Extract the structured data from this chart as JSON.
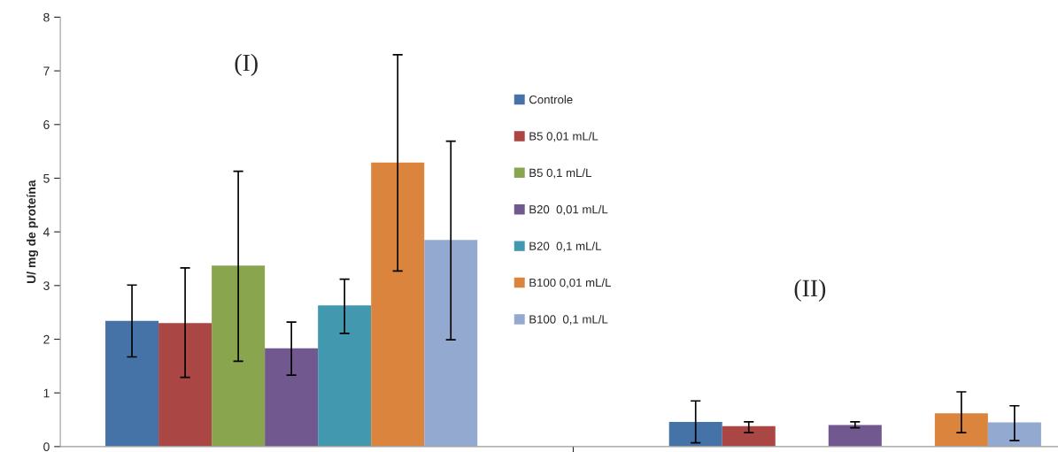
{
  "chart_data": {
    "type": "bar",
    "ylabel": "U/ mg de proteína",
    "categories": [
      null,
      null
    ],
    "ylim": [
      0,
      8
    ],
    "yticks": [
      0,
      1,
      2,
      3,
      4,
      5,
      6,
      7,
      8
    ],
    "grid": false,
    "legend": "center",
    "annotations": [
      "(I)",
      "(II)"
    ],
    "series": [
      {
        "name": "Controle",
        "color": "#4572a7",
        "values": [
          2.34,
          0.46
        ],
        "errors": [
          [
            1.67,
            3.01
          ],
          [
            0.07,
            0.85
          ]
        ]
      },
      {
        "name": "B5 0,01 mL/L",
        "color": "#aa4643",
        "values": [
          2.3,
          0.38
        ],
        "errors": [
          [
            1.29,
            3.33
          ],
          [
            0.26,
            0.46
          ]
        ]
      },
      {
        "name": "B5 0,1 mL/L",
        "color": "#89a54e",
        "values": [
          3.37,
          null
        ],
        "errors": [
          [
            1.59,
            5.13
          ],
          null
        ]
      },
      {
        "name": "B20  0,01 mL/L",
        "color": "#71588f",
        "values": [
          1.83,
          0.4
        ],
        "errors": [
          [
            1.33,
            2.32
          ],
          [
            0.35,
            0.46
          ]
        ]
      },
      {
        "name": "B20  0,1 mL/L",
        "color": "#4198af",
        "values": [
          2.63,
          null
        ],
        "errors": [
          [
            2.11,
            3.12
          ],
          null
        ]
      },
      {
        "name": "B100 0,01 mL/L",
        "color": "#db843d",
        "values": [
          5.29,
          0.62
        ],
        "errors": [
          [
            3.27,
            7.3
          ],
          [
            0.26,
            1.02
          ]
        ]
      },
      {
        "name": "B100  0,1 mL/L",
        "color": "#93a9cf",
        "values": [
          3.85,
          0.45
        ],
        "errors": [
          [
            1.99,
            5.69
          ],
          [
            0.11,
            0.76
          ]
        ]
      }
    ]
  }
}
